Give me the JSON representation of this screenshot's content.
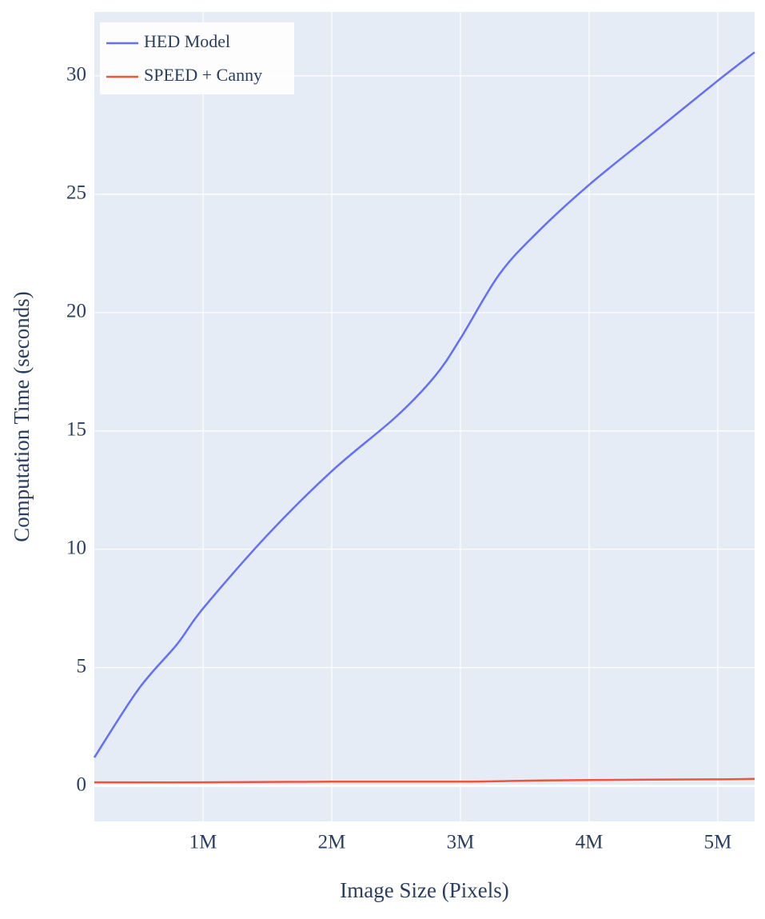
{
  "chart_data": {
    "type": "line",
    "xlabel": "Image Size (Pixels)",
    "ylabel": "Computation Time (seconds)",
    "xlim": [
      155000,
      5286000
    ],
    "xticks": [
      {
        "value": 1000000,
        "label": "1M"
      },
      {
        "value": 2000000,
        "label": "2M"
      },
      {
        "value": 3000000,
        "label": "3M"
      },
      {
        "value": 4000000,
        "label": "4M"
      },
      {
        "value": 5000000,
        "label": "5M"
      }
    ],
    "ylim": [
      -1.5,
      32.7
    ],
    "yticks": [
      0,
      5,
      10,
      15,
      20,
      25,
      30
    ],
    "grid": true,
    "legend": "top-left",
    "series": [
      {
        "name": "HED Model",
        "color": "#636efa",
        "x": [
          155000,
          500000,
          800000,
          1000000,
          1500000,
          2000000,
          2500000,
          2800000,
          3000000,
          3300000,
          3600000,
          4000000,
          4500000,
          5000000,
          5286000
        ],
        "values": [
          1.2,
          4.1,
          6.0,
          7.5,
          10.6,
          13.3,
          15.6,
          17.3,
          18.9,
          21.6,
          23.4,
          25.4,
          27.6,
          29.8,
          31.0
        ]
      },
      {
        "name": "SPEED + Canny",
        "color": "#ef553b",
        "x": [
          155000,
          1000000,
          2000000,
          3000000,
          3500000,
          4000000,
          5000000,
          5286000
        ],
        "values": [
          0.15,
          0.15,
          0.18,
          0.18,
          0.22,
          0.25,
          0.28,
          0.3
        ]
      }
    ]
  }
}
